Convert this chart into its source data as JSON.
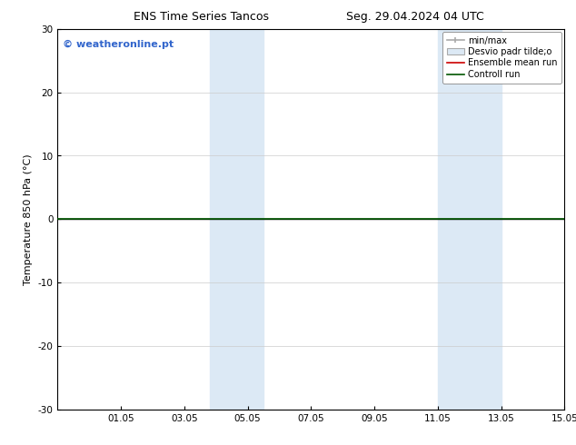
{
  "title_left": "ENS Time Series Tancos",
  "title_right": "Seg. 29.04.2024 04 UTC",
  "ylabel": "Temperature 850 hPa (°C)",
  "ylim": [
    -30,
    30
  ],
  "yticks": [
    -30,
    -20,
    -10,
    0,
    10,
    20,
    30
  ],
  "xtick_labels": [
    "01.05",
    "03.05",
    "05.05",
    "07.05",
    "09.05",
    "11.05",
    "13.05",
    "15.05"
  ],
  "xtick_positions": [
    2,
    4,
    6,
    8,
    10,
    12,
    14,
    16
  ],
  "x_min": 0,
  "x_max": 16,
  "shaded_bands": [
    {
      "x_start": 4.8,
      "x_end": 6.5,
      "color": "#dce9f5"
    },
    {
      "x_start": 12.0,
      "x_end": 14.0,
      "color": "#dce9f5"
    }
  ],
  "flat_line_y": 0.0,
  "flat_line_color": "#005500",
  "axhline_color": "#000000",
  "axhline_lw": 1.0,
  "watermark_text": "© weatheronline.pt",
  "watermark_color": "#3366cc",
  "background_color": "#ffffff",
  "plot_bg_color": "#ffffff",
  "legend_minmax_color": "#aaaaaa",
  "legend_desvio_facecolor": "#dce9f5",
  "legend_desvio_edgecolor": "#aaaaaa",
  "legend_ensemble_color": "#cc0000",
  "legend_control_color": "#005500",
  "title_fontsize": 9,
  "label_fontsize": 8,
  "tick_fontsize": 7.5,
  "watermark_fontsize": 8,
  "legend_fontsize": 7
}
